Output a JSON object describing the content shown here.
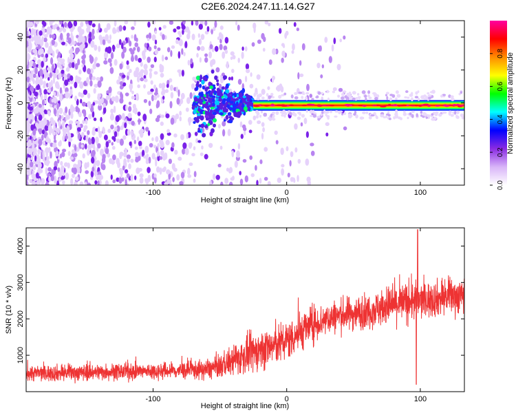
{
  "title": "C2E6.2024.247.11.14.G27",
  "chart_data": [
    {
      "type": "heatmap",
      "xlabel": "Height of straight line (km)",
      "ylabel": "Frequency (Hz)",
      "xlim": [
        -195,
        133
      ],
      "ylim": [
        -50,
        50
      ],
      "x_ticks": [
        -100,
        0,
        100
      ],
      "x_tick_labels": [
        "-100",
        "0",
        "100"
      ],
      "y_ticks": [
        -40,
        -20,
        0,
        20,
        40
      ],
      "y_tick_labels": [
        "-40",
        "-20",
        "0",
        "20",
        "40"
      ],
      "colorbar": {
        "label": "Normalized spectral amplitude",
        "range": [
          0,
          1
        ],
        "ticks": [
          0,
          0.2,
          0.4,
          0.6,
          0.8
        ],
        "tick_labels": [
          "0.0",
          "0.2",
          "0.4",
          "0.6",
          "0.8"
        ],
        "colormap": [
          "#ffffff",
          "#d8b4f8",
          "#8a2be2",
          "#0000ff",
          "#00ffff",
          "#00ff00",
          "#ffff00",
          "#ff8c00",
          "#ff0000",
          "#ff00a0"
        ]
      },
      "description_regions": [
        {
          "x_range": [
            -195,
            -45
          ],
          "pattern": "scattered noise",
          "amplitude": 0.1
        },
        {
          "x_range": [
            -70,
            -25
          ],
          "pattern": "emerging signal",
          "center_freq": 0,
          "amplitude": 0.3
        },
        {
          "x_range": [
            -25,
            133
          ],
          "pattern": "narrow carrier line",
          "center_freq": -1.5,
          "amplitude": 0.85
        }
      ]
    },
    {
      "type": "line",
      "xlabel": "Height of straight line (km)",
      "ylabel": "SNR (10 * v/v)",
      "xlim": [
        -195,
        133
      ],
      "ylim": [
        0,
        4500
      ],
      "x_ticks": [
        -100,
        0,
        100
      ],
      "x_tick_labels": [
        "-100",
        "0",
        "100"
      ],
      "y_ticks": [
        1000,
        2000,
        3000,
        4000
      ],
      "y_tick_labels": [
        "1000",
        "2000",
        "3000",
        "4000"
      ],
      "color": "#ee3333",
      "series": [
        {
          "x": [
            -195,
            -180,
            -160,
            -140,
            -120,
            -100,
            -80,
            -60,
            -50,
            -40,
            -30,
            -20,
            -10,
            0,
            10,
            20,
            30,
            40,
            50,
            60,
            70,
            80,
            90,
            95,
            100,
            110,
            120,
            133
          ],
          "values": [
            500,
            510,
            520,
            540,
            550,
            560,
            580,
            600,
            700,
            850,
            1000,
            1150,
            1250,
            1400,
            1650,
            1850,
            2000,
            2100,
            2150,
            2200,
            2300,
            2400,
            2450,
            2500,
            2500,
            2550,
            2600,
            2650
          ],
          "spread": [
            250,
            250,
            250,
            250,
            250,
            250,
            260,
            300,
            350,
            450,
            550,
            600,
            600,
            600,
            600,
            550,
            500,
            500,
            500,
            500,
            550,
            600,
            600,
            600,
            550,
            550,
            550,
            550
          ],
          "spikes": [
            {
              "x": 98,
              "value": 4450
            },
            {
              "x": 97,
              "value": 200
            }
          ]
        }
      ]
    }
  ]
}
